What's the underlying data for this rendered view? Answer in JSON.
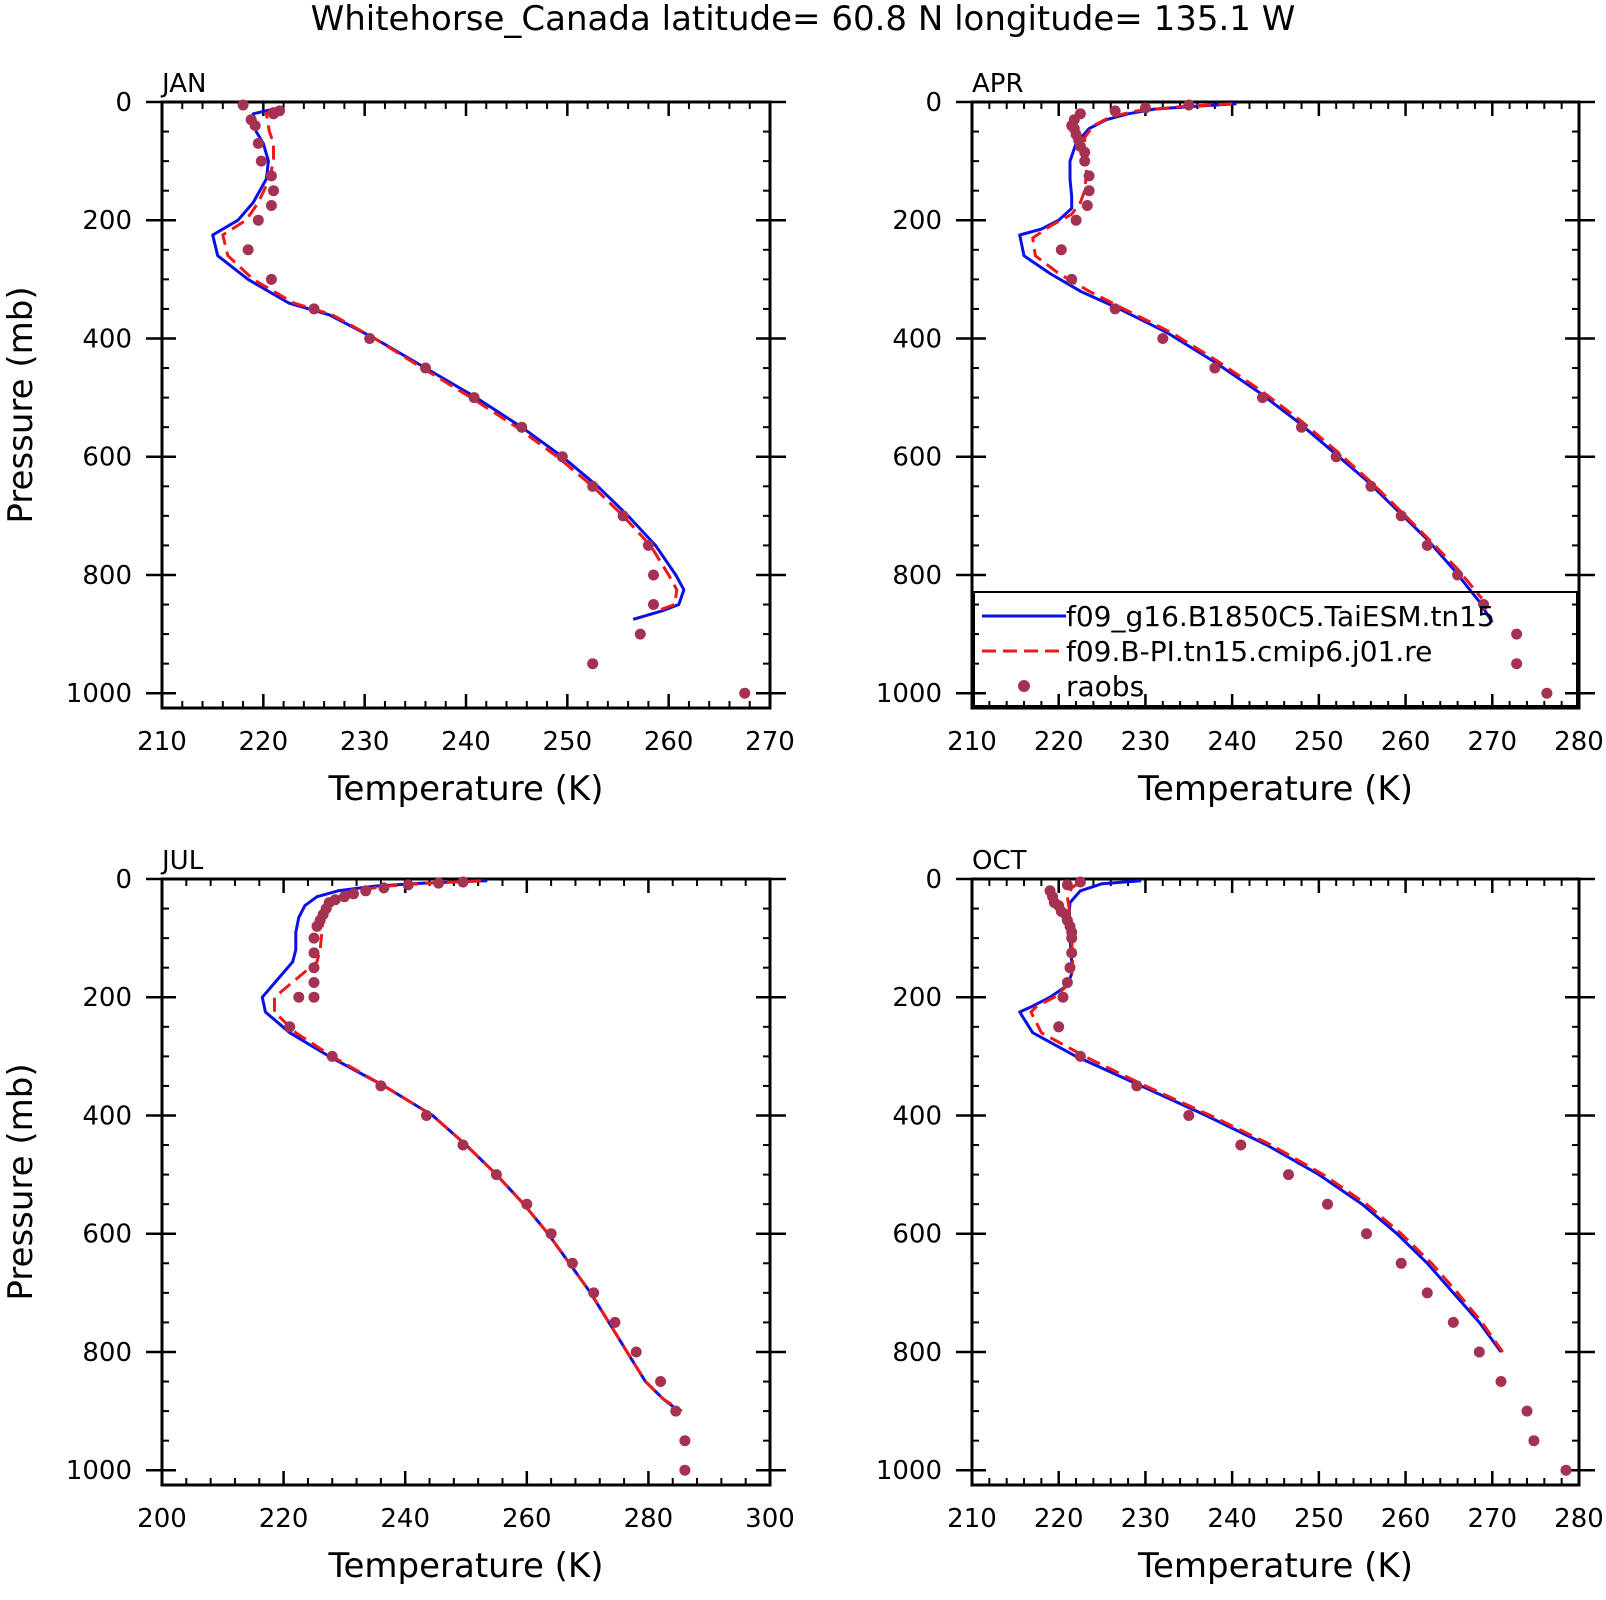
{
  "figure": {
    "title": "Whitehorse_Canada  latitude= 60.8 N longitude= 135.1 W"
  },
  "colors": {
    "model1": "#0a10e6",
    "model2": "#f01818",
    "obs": "#a63252"
  },
  "legend": [
    {
      "label": "f09_g16.B1850C5.TaiESM.tn15",
      "style": "solid"
    },
    {
      "label": "f09.B-PI.tn15.cmip6.j01.re",
      "style": "dashed"
    },
    {
      "label": "raobs",
      "style": "marker"
    }
  ],
  "chart_data": [
    {
      "type": "line",
      "title": "JAN",
      "xlabel": "Temperature (K)",
      "ylabel": "Pressure (mb)",
      "xlim": [
        210,
        270
      ],
      "xticks": [
        210,
        220,
        230,
        240,
        250,
        260,
        270
      ],
      "ylim": [
        0,
        1025
      ],
      "yticks": [
        0,
        200,
        400,
        600,
        800,
        1000
      ],
      "y_inverted": true,
      "series": [
        {
          "x": [
            221.5,
            219.0,
            219.3,
            220.0,
            220.5,
            220.3,
            219.0,
            217.5,
            215.0,
            215.5,
            218.5,
            222.5,
            226.5,
            231.0,
            236.0,
            241.0,
            245.5,
            249.5,
            253.0,
            256.0,
            258.7,
            260.7,
            261.5,
            261.0,
            259.5,
            256.5
          ],
          "y": [
            10,
            20,
            50,
            70,
            100,
            130,
            170,
            200,
            225,
            260,
            300,
            340,
            360,
            400,
            450,
            500,
            550,
            600,
            650,
            700,
            750,
            800,
            825,
            850,
            860,
            875
          ]
        },
        {
          "x": [
            221.0,
            220.3,
            220.6,
            221.0,
            221.0,
            220.6,
            219.5,
            218.3,
            216.0,
            216.5,
            219.0,
            223.0,
            226.8,
            231.0,
            235.7,
            240.5,
            245.0,
            249.0,
            252.5,
            255.5,
            258.2,
            260.0,
            260.8,
            260.6,
            259.0
          ],
          "y": [
            10,
            20,
            50,
            70,
            100,
            130,
            170,
            200,
            225,
            260,
            300,
            340,
            360,
            400,
            450,
            500,
            550,
            600,
            650,
            700,
            750,
            800,
            825,
            850,
            860
          ]
        },
        {
          "x": [
            218.0,
            221.0,
            221.6,
            218.8,
            219.2,
            219.5,
            219.8,
            220.8,
            221.0,
            220.8,
            219.5,
            218.5,
            220.8,
            225.0,
            230.5,
            236.0,
            240.8,
            245.5,
            249.5,
            252.5,
            255.5,
            258.0,
            258.5,
            258.5,
            257.2,
            252.5,
            267.5
          ],
          "y": [
            5,
            20,
            15,
            30,
            40,
            70,
            100,
            125,
            150,
            175,
            200,
            250,
            300,
            350,
            400,
            450,
            500,
            550,
            600,
            650,
            700,
            750,
            800,
            850,
            900,
            950,
            1000
          ]
        }
      ]
    },
    {
      "type": "line",
      "title": "APR",
      "xlabel": "Temperature (K)",
      "ylabel": "",
      "xlim": [
        210,
        280
      ],
      "xticks": [
        210,
        220,
        230,
        240,
        250,
        260,
        270,
        280
      ],
      "ylim": [
        0,
        1025
      ],
      "yticks": [
        0,
        200,
        400,
        600,
        800,
        1000
      ],
      "y_inverted": true,
      "series": [
        {
          "x": [
            240.5,
            236.0,
            231.0,
            228.0,
            225.5,
            223.5,
            222.0,
            221.3,
            221.3,
            221.5,
            221.5,
            220.0,
            218.0,
            215.5,
            216.0,
            219.0,
            222.5,
            227.0,
            232.5,
            238.0,
            243.0,
            247.5,
            251.5,
            255.5,
            259.0,
            262.5,
            265.5,
            268.5,
            270.0
          ],
          "y": [
            3,
            7,
            12,
            20,
            30,
            45,
            70,
            100,
            130,
            160,
            180,
            200,
            215,
            225,
            260,
            290,
            320,
            350,
            390,
            440,
            490,
            540,
            590,
            640,
            690,
            740,
            790,
            845,
            880
          ]
        },
        {
          "x": [
            240.0,
            234.0,
            229.0,
            226.0,
            224.0,
            223.0,
            223.0,
            223.2,
            223.0,
            222.5,
            221.5,
            219.0,
            217.0,
            217.3,
            220.0,
            223.5,
            227.5,
            233.0,
            238.5,
            243.5,
            248.0,
            252.0,
            255.8,
            259.3,
            262.7,
            266.0,
            268.8
          ],
          "y": [
            3,
            8,
            15,
            25,
            40,
            60,
            90,
            120,
            150,
            170,
            190,
            210,
            230,
            260,
            290,
            320,
            350,
            390,
            440,
            490,
            540,
            590,
            640,
            690,
            740,
            790,
            840
          ]
        },
        {
          "x": [
            235.0,
            230.0,
            226.5,
            222.5,
            221.8,
            221.5,
            221.8,
            222.0,
            222.3,
            222.5,
            223.0,
            223.0,
            223.5,
            223.5,
            223.3,
            222.0,
            220.3,
            221.5,
            226.5,
            232.0,
            238.0,
            243.5,
            248.0,
            252.0,
            256.0,
            259.5,
            262.5,
            266.0,
            269.0,
            272.8,
            272.8,
            276.3
          ],
          "y": [
            5,
            10,
            15,
            20,
            30,
            40,
            45,
            55,
            65,
            75,
            85,
            100,
            125,
            150,
            175,
            200,
            250,
            300,
            350,
            400,
            450,
            500,
            550,
            600,
            650,
            700,
            750,
            800,
            850,
            900,
            950,
            1000
          ]
        }
      ]
    },
    {
      "type": "line",
      "title": "JUL",
      "xlabel": "Temperature (K)",
      "ylabel": "Pressure (mb)",
      "xlim": [
        200,
        300
      ],
      "xticks": [
        200,
        220,
        240,
        260,
        280,
        300
      ],
      "ylim": [
        0,
        1025
      ],
      "yticks": [
        0,
        200,
        400,
        600,
        800,
        1000
      ],
      "y_inverted": true,
      "series": [
        {
          "x": [
            253.5,
            243.0,
            235.0,
            229.0,
            225.5,
            223.5,
            222.5,
            222.0,
            222.0,
            221.5,
            219.0,
            216.5,
            217.0,
            221.0,
            227.5,
            236.5,
            244.5,
            250.0,
            255.0,
            259.5,
            263.5,
            267.0,
            270.5,
            273.5,
            276.5,
            279.5,
            282.5,
            285.0
          ],
          "y": [
            3,
            7,
            12,
            20,
            30,
            45,
            65,
            90,
            120,
            140,
            170,
            200,
            225,
            260,
            300,
            350,
            400,
            450,
            500,
            550,
            600,
            650,
            700,
            750,
            800,
            850,
            880,
            900
          ]
        },
        {
          "x": [
            252.5,
            244.0,
            237.0,
            231.5,
            228.5,
            227.0,
            226.5,
            226.3,
            226.0,
            225.5,
            222.0,
            218.5,
            218.5,
            222.0,
            228.0,
            236.5,
            244.5,
            250.0,
            255.0,
            259.5,
            263.5,
            267.0,
            270.5,
            273.5,
            276.5,
            279.5,
            282.5,
            285.5
          ],
          "y": [
            3,
            7,
            12,
            20,
            30,
            45,
            65,
            90,
            120,
            140,
            170,
            200,
            225,
            260,
            300,
            350,
            400,
            450,
            500,
            550,
            600,
            650,
            700,
            750,
            800,
            850,
            880,
            900
          ]
        },
        {
          "x": [
            249.5,
            245.5,
            240.5,
            236.5,
            233.5,
            231.5,
            230.0,
            228.5,
            227.5,
            227.0,
            226.5,
            226.0,
            225.5,
            225.0,
            225.0,
            225.0,
            225.0,
            225.0,
            222.5,
            221.0,
            228.0,
            236.0,
            243.5,
            249.5,
            255.0,
            260.0,
            264.0,
            267.5,
            271.0,
            274.5,
            278.0,
            282.0,
            284.5,
            286.0,
            286.0
          ],
          "y": [
            5,
            7,
            10,
            15,
            20,
            25,
            30,
            35,
            40,
            50,
            60,
            70,
            80,
            100,
            125,
            150,
            175,
            200,
            200,
            250,
            300,
            350,
            400,
            450,
            500,
            550,
            600,
            650,
            700,
            750,
            800,
            850,
            900,
            950,
            1000
          ]
        }
      ]
    },
    {
      "type": "line",
      "title": "OCT",
      "xlabel": "Temperature (K)",
      "ylabel": "",
      "xlim": [
        210,
        280
      ],
      "xticks": [
        210,
        220,
        230,
        240,
        250,
        260,
        270,
        280
      ],
      "ylim": [
        0,
        1025
      ],
      "yticks": [
        0,
        200,
        400,
        600,
        800,
        1000
      ],
      "y_inverted": true,
      "series": [
        {
          "x": [
            229.5,
            225.0,
            222.5,
            221.3,
            221.2,
            221.3,
            221.5,
            221.5,
            221.0,
            219.0,
            217.0,
            215.5,
            217.0,
            222.0,
            229.5,
            237.0,
            244.0,
            250.0,
            255.0,
            259.0,
            262.5,
            265.5,
            268.5,
            271.0
          ],
          "y": [
            3,
            8,
            20,
            40,
            60,
            100,
            140,
            160,
            180,
            200,
            215,
            225,
            260,
            300,
            350,
            400,
            450,
            500,
            550,
            600,
            650,
            700,
            750,
            800
          ]
        },
        {
          "x": [
            222.5,
            221.5,
            221.0,
            221.2,
            221.3,
            221.5,
            221.6,
            221.5,
            221.0,
            219.5,
            217.5,
            216.8,
            218.0,
            223.0,
            230.0,
            237.5,
            244.5,
            250.5,
            255.5,
            259.5,
            263.0,
            266.0,
            268.8,
            271.2
          ],
          "y": [
            5,
            15,
            30,
            50,
            70,
            100,
            140,
            160,
            180,
            200,
            215,
            225,
            260,
            300,
            350,
            400,
            450,
            500,
            550,
            600,
            650,
            700,
            750,
            800
          ]
        },
        {
          "x": [
            222.5,
            221.0,
            219.0,
            219.3,
            219.5,
            220.0,
            220.3,
            220.8,
            221.0,
            221.3,
            221.5,
            221.5,
            221.5,
            221.3,
            221.0,
            220.5,
            220.0,
            222.5,
            229.0,
            235.0,
            241.0,
            246.5,
            251.0,
            255.5,
            259.5,
            262.5,
            265.5,
            268.5,
            271.0,
            274.0,
            274.8,
            278.5
          ],
          "y": [
            5,
            10,
            20,
            30,
            40,
            45,
            55,
            60,
            70,
            80,
            90,
            100,
            125,
            150,
            175,
            200,
            250,
            300,
            350,
            400,
            450,
            500,
            550,
            600,
            650,
            700,
            750,
            800,
            850,
            900,
            950,
            1000
          ]
        }
      ]
    }
  ]
}
